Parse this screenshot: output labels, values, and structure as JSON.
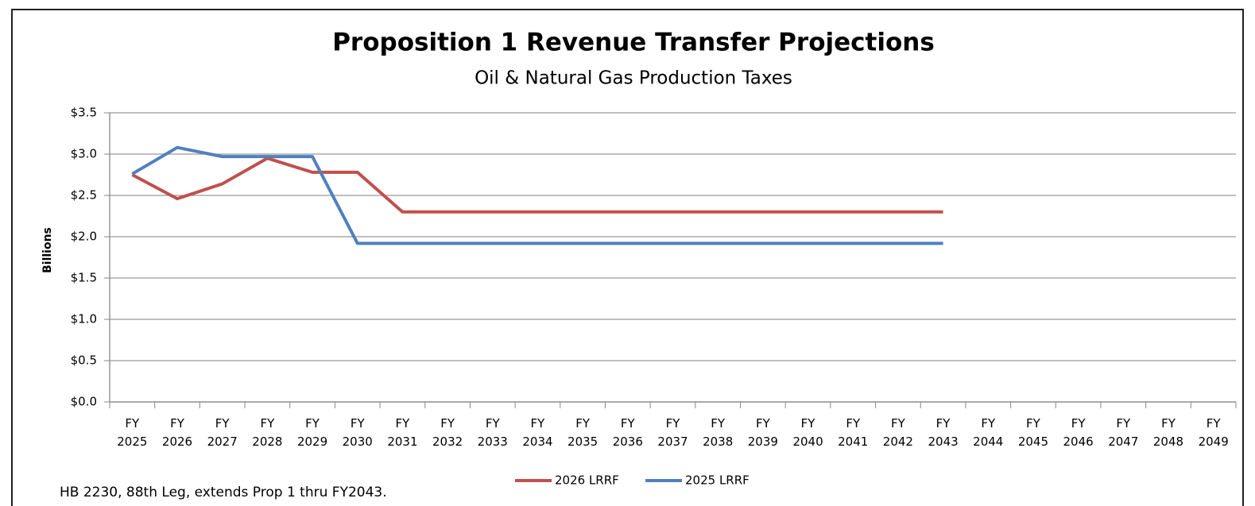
{
  "chart_data": {
    "type": "line",
    "title": "Proposition 1 Revenue Transfer Projections",
    "subtitle": "Oil & Natural Gas Production Taxes",
    "y_label": "Billions",
    "note": "HB 2230, 88th Leg, extends Prop 1 thru FY2043.",
    "categories": [
      "FY 2025",
      "FY 2026",
      "FY 2027",
      "FY 2028",
      "FY 2029",
      "FY 2030",
      "FY 2031",
      "FY 2032",
      "FY 2033",
      "FY 2034",
      "FY 2035",
      "FY 2036",
      "FY 2037",
      "FY 2038",
      "FY 2039",
      "FY 2040",
      "FY 2041",
      "FY 2042",
      "FY 2043",
      "FY 2044",
      "FY 2045",
      "FY 2046",
      "FY 2047",
      "FY 2048",
      "FY 2049"
    ],
    "series": [
      {
        "name": "2026 LRRF",
        "color": "#c0504d",
        "values": [
          2.75,
          2.46,
          2.64,
          2.95,
          2.78,
          2.78,
          2.3,
          2.3,
          2.3,
          2.3,
          2.3,
          2.3,
          2.3,
          2.3,
          2.3,
          2.3,
          2.3,
          2.3,
          2.3,
          null,
          null,
          null,
          null,
          null,
          null
        ]
      },
      {
        "name": "2025 LRRF",
        "color": "#4f81bd",
        "values": [
          2.76,
          3.08,
          2.97,
          2.97,
          2.97,
          1.92,
          1.92,
          1.92,
          1.92,
          1.92,
          1.92,
          1.92,
          1.92,
          1.92,
          1.92,
          1.92,
          1.92,
          1.92,
          1.92,
          null,
          null,
          null,
          null,
          null,
          null
        ]
      }
    ],
    "ylim": [
      0,
      3.5
    ],
    "yticks": [
      {
        "value": 0,
        "label": "$0.0"
      },
      {
        "value": 0.5,
        "label": "$0.5"
      },
      {
        "value": 1,
        "label": "$1.0"
      },
      {
        "value": 1.5,
        "label": "$1.5"
      },
      {
        "value": 2,
        "label": "$2.0"
      },
      {
        "value": 2.5,
        "label": "$2.5"
      },
      {
        "value": 3,
        "label": "$3.0"
      },
      {
        "value": 3.5,
        "label": "$3.5"
      }
    ],
    "grid": true,
    "legend": "bottom"
  }
}
